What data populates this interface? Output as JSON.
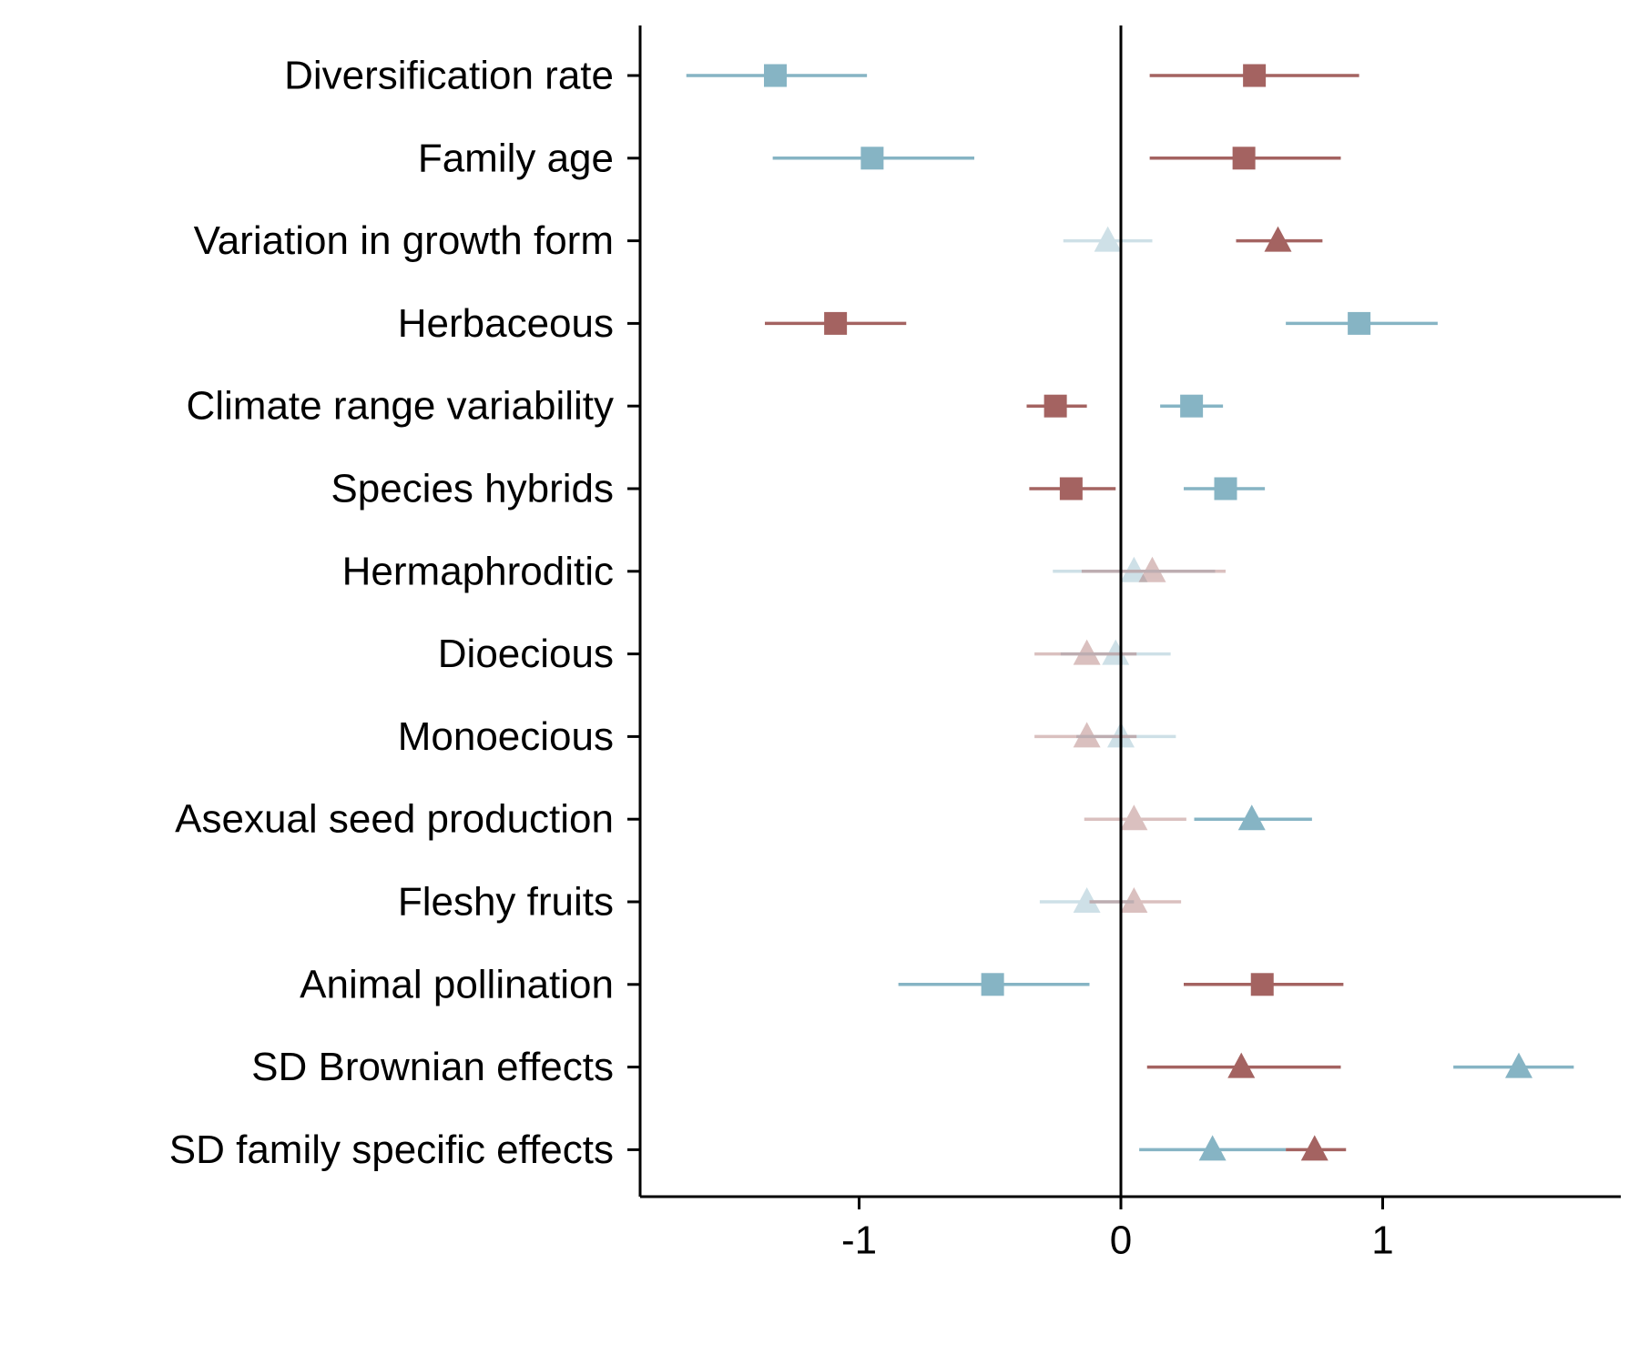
{
  "chart_data": {
    "type": "scatter",
    "xlim": [
      -1.84,
      1.9
    ],
    "xticks": [
      -1,
      0,
      1
    ],
    "xtick_labels": [
      "-1",
      "0",
      "1"
    ],
    "reference_line_x": 0,
    "grid": false,
    "legend": "none",
    "categories": [
      "Diversification rate",
      "Family age",
      "Variation in growth form",
      "Herbaceous",
      "Climate range variability",
      "Species hybrids",
      "Hermaphroditic",
      "Dioecious",
      "Monoecious",
      "Asexual seed production",
      "Fleshy fruits",
      "Animal pollination",
      "SD Brownian effects",
      "SD family specific effects"
    ],
    "series": [
      {
        "color": "#86b4c4",
        "points": [
          {
            "category": "Diversification rate",
            "estimate": -1.32,
            "lower": -1.66,
            "upper": -0.97,
            "marker": "square",
            "significant": true
          },
          {
            "category": "Family age",
            "estimate": -0.95,
            "lower": -1.33,
            "upper": -0.56,
            "marker": "square",
            "significant": true
          },
          {
            "category": "Variation in growth form",
            "estimate": -0.05,
            "lower": -0.22,
            "upper": 0.12,
            "marker": "triangle",
            "significant": false
          },
          {
            "category": "Herbaceous",
            "estimate": 0.91,
            "lower": 0.63,
            "upper": 1.21,
            "marker": "square",
            "significant": true
          },
          {
            "category": "Climate range variability",
            "estimate": 0.27,
            "lower": 0.15,
            "upper": 0.39,
            "marker": "square",
            "significant": true
          },
          {
            "category": "Species hybrids",
            "estimate": 0.4,
            "lower": 0.24,
            "upper": 0.55,
            "marker": "square",
            "significant": true
          },
          {
            "category": "Hermaphroditic",
            "estimate": 0.05,
            "lower": -0.26,
            "upper": 0.36,
            "marker": "triangle",
            "significant": false
          },
          {
            "category": "Dioecious",
            "estimate": -0.02,
            "lower": -0.23,
            "upper": 0.19,
            "marker": "triangle",
            "significant": false
          },
          {
            "category": "Monoecious",
            "estimate": 0.0,
            "lower": -0.17,
            "upper": 0.21,
            "marker": "triangle",
            "significant": false
          },
          {
            "category": "Asexual seed production",
            "estimate": 0.5,
            "lower": 0.28,
            "upper": 0.73,
            "marker": "triangle",
            "significant": true
          },
          {
            "category": "Fleshy fruits",
            "estimate": -0.13,
            "lower": -0.31,
            "upper": 0.05,
            "marker": "triangle",
            "significant": false
          },
          {
            "category": "Animal pollination",
            "estimate": -0.49,
            "lower": -0.85,
            "upper": -0.12,
            "marker": "square",
            "significant": true
          },
          {
            "category": "SD Brownian effects",
            "estimate": 1.52,
            "lower": 1.27,
            "upper": 1.73,
            "marker": "triangle",
            "significant": true
          },
          {
            "category": "SD family specific effects",
            "estimate": 0.35,
            "lower": 0.07,
            "upper": 0.63,
            "marker": "triangle",
            "significant": true
          }
        ]
      },
      {
        "color": "#a46361",
        "points": [
          {
            "category": "Diversification rate",
            "estimate": 0.51,
            "lower": 0.11,
            "upper": 0.91,
            "marker": "square",
            "significant": true
          },
          {
            "category": "Family age",
            "estimate": 0.47,
            "lower": 0.11,
            "upper": 0.84,
            "marker": "square",
            "significant": true
          },
          {
            "category": "Variation in growth form",
            "estimate": 0.6,
            "lower": 0.44,
            "upper": 0.77,
            "marker": "triangle",
            "significant": true
          },
          {
            "category": "Herbaceous",
            "estimate": -1.09,
            "lower": -1.36,
            "upper": -0.82,
            "marker": "square",
            "significant": true
          },
          {
            "category": "Climate range variability",
            "estimate": -0.25,
            "lower": -0.36,
            "upper": -0.13,
            "marker": "square",
            "significant": true
          },
          {
            "category": "Species hybrids",
            "estimate": -0.19,
            "lower": -0.35,
            "upper": -0.02,
            "marker": "square",
            "significant": true
          },
          {
            "category": "Hermaphroditic",
            "estimate": 0.12,
            "lower": -0.15,
            "upper": 0.4,
            "marker": "triangle",
            "significant": false
          },
          {
            "category": "Dioecious",
            "estimate": -0.13,
            "lower": -0.33,
            "upper": 0.06,
            "marker": "triangle",
            "significant": false
          },
          {
            "category": "Monoecious",
            "estimate": -0.13,
            "lower": -0.33,
            "upper": 0.06,
            "marker": "triangle",
            "significant": false
          },
          {
            "category": "Asexual seed production",
            "estimate": 0.05,
            "lower": -0.14,
            "upper": 0.25,
            "marker": "triangle",
            "significant": false
          },
          {
            "category": "Fleshy fruits",
            "estimate": 0.05,
            "lower": -0.12,
            "upper": 0.23,
            "marker": "triangle",
            "significant": false
          },
          {
            "category": "Animal pollination",
            "estimate": 0.54,
            "lower": 0.24,
            "upper": 0.85,
            "marker": "square",
            "significant": true
          },
          {
            "category": "SD Brownian effects",
            "estimate": 0.46,
            "lower": 0.1,
            "upper": 0.84,
            "marker": "triangle",
            "significant": true
          },
          {
            "category": "SD family specific effects",
            "estimate": 0.74,
            "lower": 0.63,
            "upper": 0.86,
            "marker": "triangle",
            "significant": true
          }
        ]
      }
    ]
  }
}
